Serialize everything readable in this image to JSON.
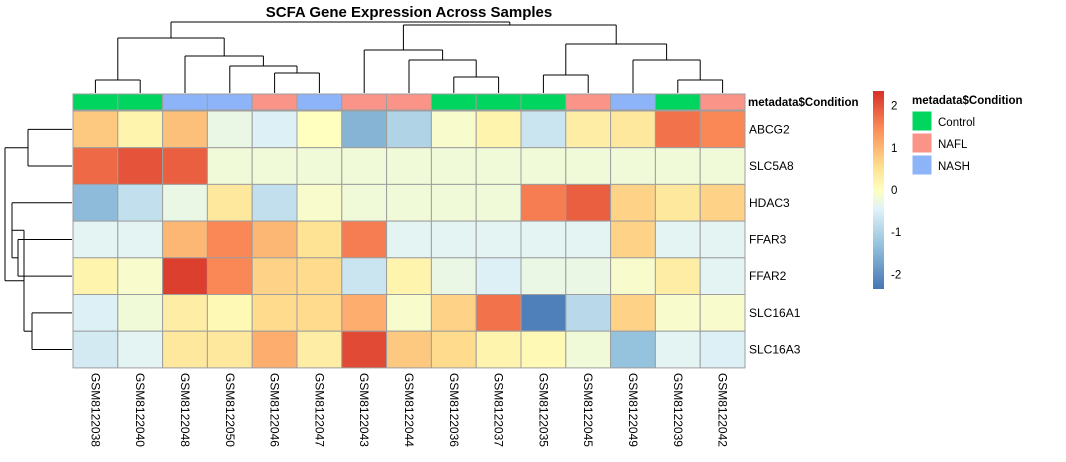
{
  "chart_data": {
    "type": "heatmap",
    "title": "SCFA Gene Expression Across Samples",
    "rows": [
      "ABCG2",
      "SLC5A8",
      "HDAC3",
      "FFAR3",
      "FFAR2",
      "SLC16A1",
      "SLC16A3"
    ],
    "columns": [
      "GSM8122038",
      "GSM8122040",
      "GSM8122048",
      "GSM8122050",
      "GSM8122046",
      "GSM8122047",
      "GSM8122043",
      "GSM8122044",
      "GSM8122036",
      "GSM8122037",
      "GSM8122035",
      "GSM8122045",
      "GSM8122049",
      "GSM8122039",
      "GSM8122042"
    ],
    "values": [
      [
        0.8,
        0.2,
        0.9,
        -0.3,
        -0.5,
        0.0,
        -1.5,
        -1.0,
        -0.1,
        0.2,
        -0.7,
        0.3,
        0.4,
        1.7,
        1.5
      ],
      [
        1.8,
        2.0,
        1.9,
        -0.2,
        -0.2,
        -0.2,
        -0.2,
        -0.2,
        -0.2,
        -0.2,
        -0.2,
        -0.2,
        -0.2,
        -0.2,
        -0.2
      ],
      [
        -1.4,
        -0.8,
        -0.3,
        0.4,
        -0.8,
        -0.1,
        -0.2,
        -0.2,
        -0.2,
        -0.2,
        1.6,
        1.9,
        0.7,
        0.4,
        0.7
      ],
      [
        -0.4,
        -0.4,
        1.0,
        1.5,
        1.0,
        0.5,
        1.6,
        -0.4,
        -0.4,
        -0.4,
        -0.4,
        -0.4,
        0.7,
        -0.4,
        -0.4
      ],
      [
        0.2,
        -0.1,
        2.2,
        1.5,
        0.7,
        0.6,
        -0.7,
        0.2,
        -0.3,
        -0.5,
        -0.3,
        -0.3,
        -0.1,
        0.3,
        -0.4
      ],
      [
        -0.5,
        -0.2,
        0.3,
        0.1,
        0.6,
        0.6,
        1.1,
        -0.1,
        0.7,
        1.7,
        -2.2,
        -0.9,
        0.7,
        -0.1,
        -0.1
      ],
      [
        -0.6,
        -0.4,
        0.4,
        0.4,
        1.1,
        0.3,
        2.1,
        0.8,
        0.6,
        0.2,
        0.1,
        -0.2,
        -1.3,
        -0.4,
        -0.5
      ]
    ],
    "annotation": {
      "label": "metadata$Condition",
      "values": [
        "Control",
        "Control",
        "NASH",
        "NASH",
        "NAFL",
        "NASH",
        "NAFL",
        "NAFL",
        "Control",
        "Control",
        "Control",
        "NAFL",
        "NASH",
        "Control",
        "NAFL"
      ],
      "legend_title": "metadata$Condition",
      "levels": [
        "Control",
        "NAFL",
        "NASH"
      ],
      "colors": {
        "Control": "#00D65F",
        "NAFL": "#FA9488",
        "NASH": "#8DB4F8"
      }
    },
    "color_scale": {
      "colors": [
        "#4575B4",
        "#91BFDB",
        "#E0F3F8",
        "#FFFFBF",
        "#FEE090",
        "#FC8D59",
        "#D73027"
      ],
      "breaks": [
        -2.35,
        -1.35,
        -0.45,
        0.0,
        0.55,
        1.45,
        2.35
      ],
      "ticks": [
        "2",
        "1",
        "0",
        "-1",
        "-2"
      ],
      "tick_values": [
        2,
        1,
        0,
        -1,
        -2
      ],
      "range": [
        -2.35,
        2.35
      ]
    },
    "legend_position": "right",
    "cell_border_color": "#9E9E9E"
  }
}
